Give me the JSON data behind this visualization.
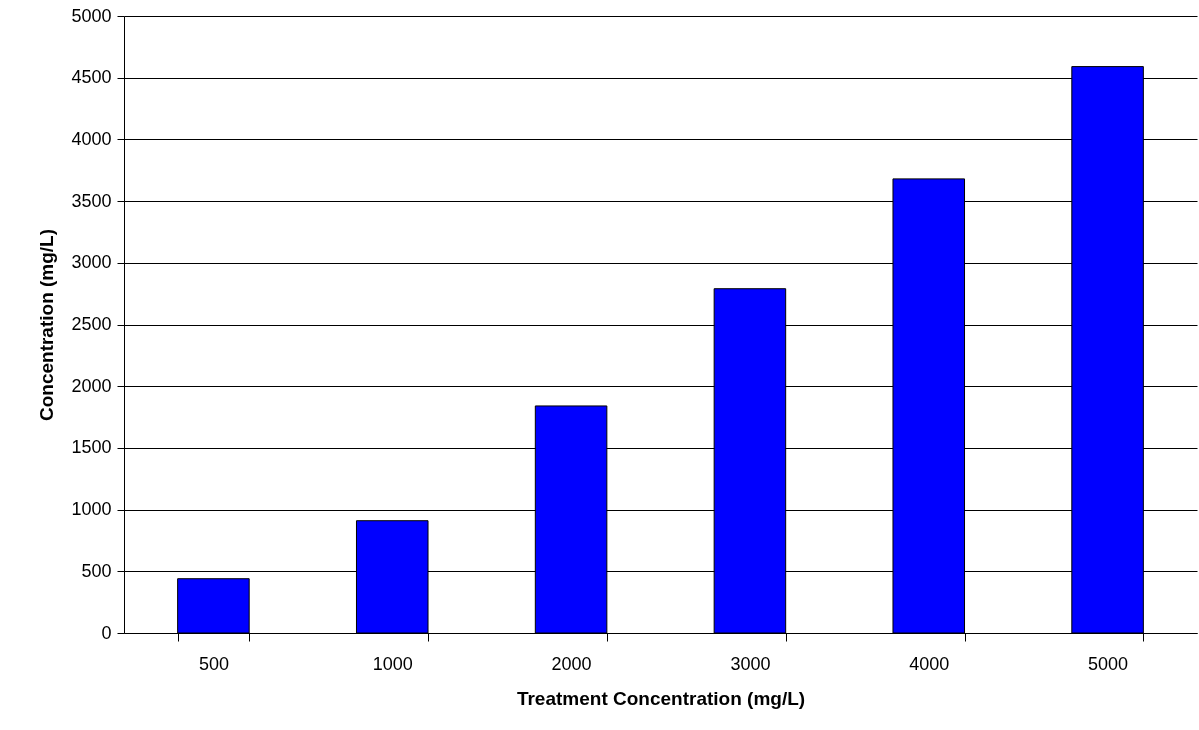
{
  "chart_data": {
    "type": "bar",
    "xlabel": "Treatment Concentration (mg/L)",
    "ylabel": "Concentration (mg/L)",
    "categories": [
      "500",
      "1000",
      "2000",
      "3000",
      "4000",
      "5000"
    ],
    "values": [
      440,
      910,
      1840,
      2790,
      3680,
      4590
    ],
    "color": "#0000ff",
    "ylim": [
      0,
      5000
    ],
    "yticks": [
      0,
      500,
      1000,
      1500,
      2000,
      2500,
      3000,
      3500,
      4000,
      4500,
      5000
    ],
    "grid": "y"
  }
}
